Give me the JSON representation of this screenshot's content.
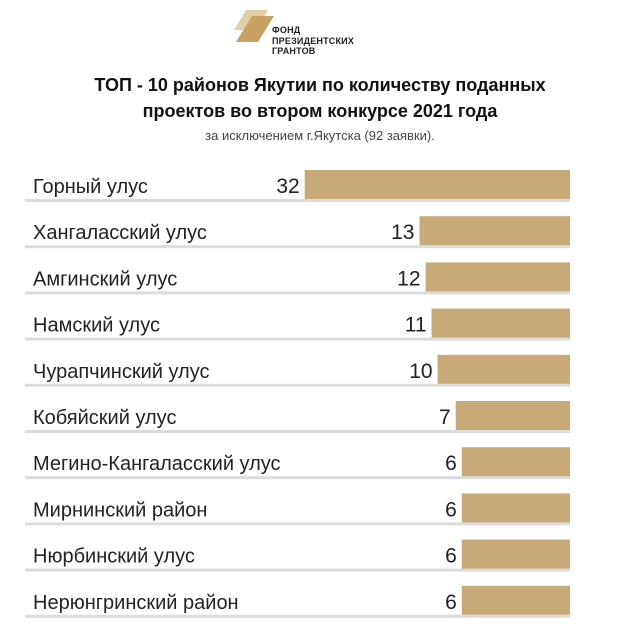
{
  "logo": {
    "text_lines": [
      "ФОНД",
      "ПРЕЗИДЕНТСКИХ",
      "ГРАНТОВ"
    ]
  },
  "chart_data": {
    "type": "bar",
    "orientation": "horizontal",
    "title": "ТОП - 10 районов Якутии по количеству поданных проектов во втором конкурсе 2021 года",
    "subtitle": "за исключением г.Якутска (92 заявки).",
    "categories": [
      "Горный улус",
      "Хангаласский улус",
      "Амгинский улус",
      "Намский улус",
      "Чурапчинский улус",
      "Кобяйский улус",
      "Мегино-Кангаласский улус",
      "Мирнинский район",
      "Нюрбинский улус",
      "Нерюнгринский район"
    ],
    "values": [
      32,
      13,
      12,
      11,
      10,
      7,
      6,
      6,
      6,
      6
    ],
    "bar_color": "#c8a978",
    "grid": false,
    "legend": "none"
  }
}
